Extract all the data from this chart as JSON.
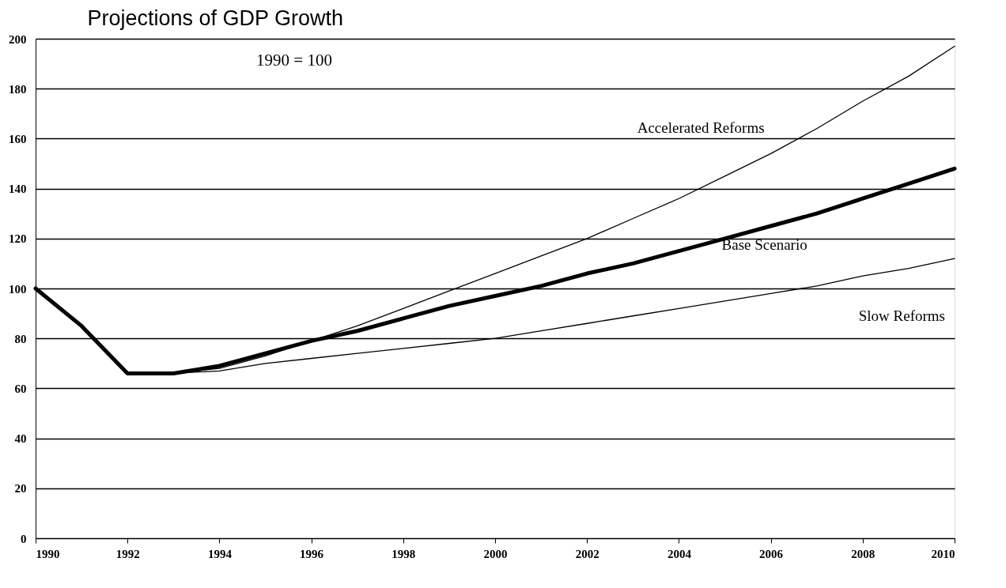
{
  "chart_data": {
    "type": "line",
    "title": "Projections of GDP Growth",
    "subtitle": "1990 = 100",
    "xlim": [
      1990,
      2010
    ],
    "xticks": [
      1990,
      1992,
      1994,
      1996,
      1998,
      2000,
      2002,
      2004,
      2006,
      2008,
      2010
    ],
    "ylim": [
      0,
      200
    ],
    "yticks": [
      0,
      20,
      40,
      60,
      80,
      100,
      120,
      140,
      160,
      180,
      200
    ],
    "grid": "y",
    "marker": "none",
    "line_style": "solid",
    "series": [
      {
        "name": "Accelerated Reforms",
        "color": "#000000",
        "x": [
          1993,
          1994,
          1995,
          1996,
          1997,
          1998,
          1999,
          2000,
          2001,
          2002,
          2003,
          2004,
          2005,
          2006,
          2007,
          2008,
          2009,
          2010
        ],
        "values": [
          66,
          68,
          73,
          79,
          85,
          92,
          99,
          106,
          113,
          120,
          128,
          136,
          145,
          154,
          164,
          175,
          185,
          197
        ]
      },
      {
        "name": "Base Scenario",
        "color": "#000000",
        "x": [
          1990,
          1991,
          1992,
          1993,
          1994,
          1995,
          1996,
          1997,
          1998,
          1999,
          2000,
          2001,
          2002,
          2003,
          2004,
          2005,
          2006,
          2007,
          2008,
          2009,
          2010
        ],
        "values": [
          100,
          85,
          66,
          66,
          69,
          74,
          79,
          83,
          88,
          93,
          97,
          101,
          106,
          110,
          115,
          120,
          125,
          130,
          136,
          142,
          148
        ]
      },
      {
        "name": "Slow Reforms",
        "color": "#000000",
        "x": [
          1993,
          1994,
          1995,
          1996,
          1997,
          1998,
          1999,
          2000,
          2001,
          2002,
          2003,
          2004,
          2005,
          2006,
          2007,
          2008,
          2009,
          2010
        ],
        "values": [
          66,
          67,
          70,
          72,
          74,
          76,
          78,
          80,
          83,
          86,
          89,
          92,
          95,
          98,
          101,
          105,
          108,
          112
        ]
      }
    ]
  }
}
